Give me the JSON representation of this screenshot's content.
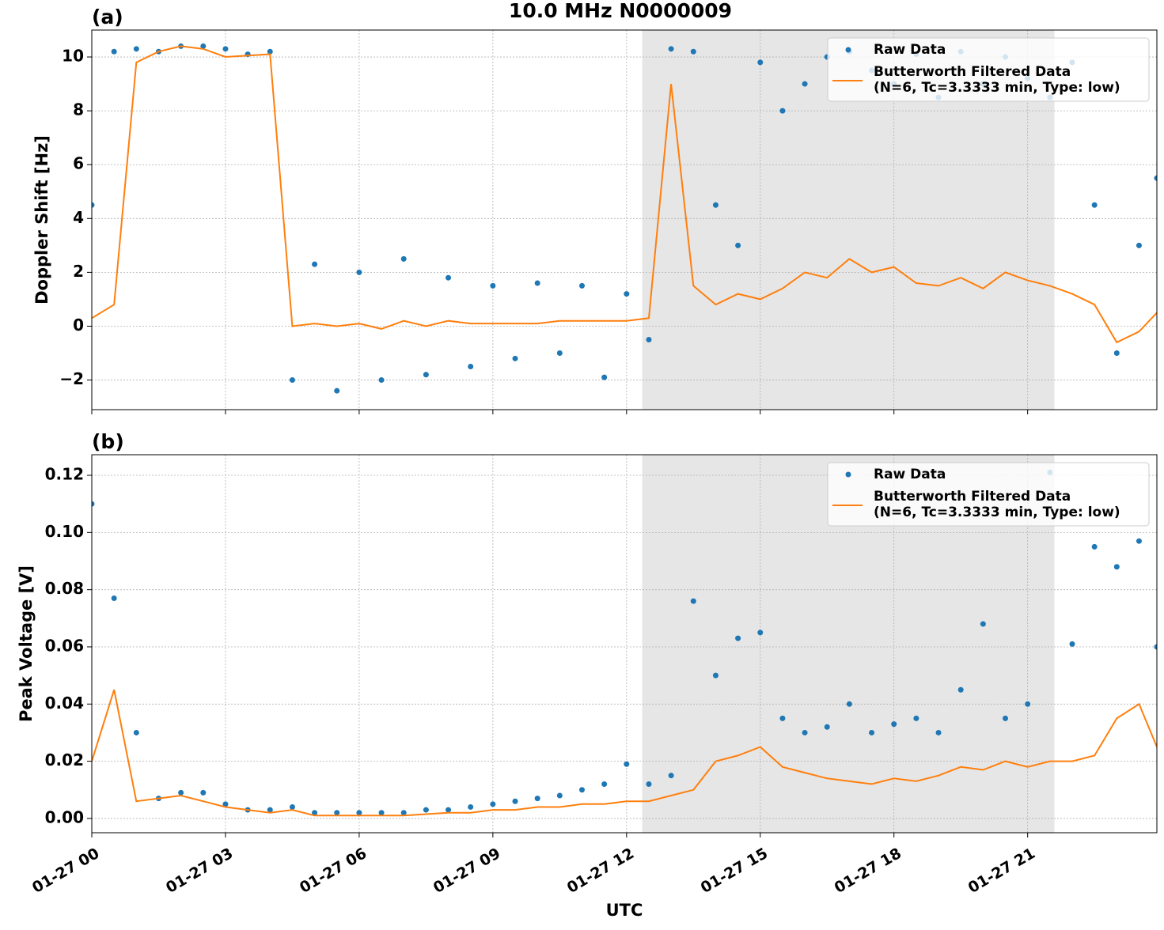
{
  "chart_data": [
    {
      "type": "scatter_line",
      "title": "10.0 MHz N0000009",
      "panel_label": "(a)",
      "y_label": "Doppler Shift [Hz]",
      "sharex": true,
      "xlim": [
        0,
        23.9
      ],
      "ylim": [
        -3.1,
        11.0
      ],
      "yticks": [
        {
          "value": -2,
          "label": "−2"
        },
        0,
        2,
        4,
        6,
        8,
        10
      ],
      "grid": true,
      "legend": "upper right",
      "shaded_span": [
        12.35,
        21.6
      ],
      "x": [
        0,
        0.5,
        1,
        1.5,
        2,
        2.5,
        3,
        3.5,
        4,
        4.5,
        5,
        5.5,
        6,
        6.5,
        7,
        7.5,
        8,
        8.5,
        9,
        9.5,
        10,
        10.5,
        11,
        11.5,
        12,
        12.5,
        13,
        13.5,
        14,
        14.5,
        15,
        15.5,
        16,
        16.5,
        17,
        17.5,
        18,
        18.5,
        19,
        19.5,
        20,
        20.5,
        21,
        21.5,
        22,
        22.5,
        23,
        23.5,
        23.9
      ],
      "series": [
        {
          "name": "Raw Data",
          "color": "#1f77b4",
          "mode": "markers",
          "values": [
            4.5,
            10.2,
            10.3,
            10.2,
            10.4,
            10.4,
            10.3,
            10.1,
            10.2,
            -2.0,
            2.3,
            -2.4,
            2.0,
            -2.0,
            2.5,
            -1.8,
            1.8,
            -1.5,
            1.5,
            -1.2,
            1.6,
            -1.0,
            1.5,
            -1.9,
            1.2,
            -0.5,
            10.3,
            10.2,
            4.5,
            3.0,
            9.8,
            8.0,
            9.0,
            10.0,
            10.2,
            9.5,
            9.0,
            10.1,
            8.5,
            10.2,
            9.0,
            10.0,
            9.2,
            8.5,
            9.8,
            4.5,
            -1.0,
            3.0,
            5.5
          ]
        },
        {
          "name": "Butterworth Filtered Data\n(N=6, Tc=3.3333 min, Type: low)",
          "color": "#ff7f0e",
          "mode": "line",
          "values": [
            0.3,
            0.8,
            9.8,
            10.2,
            10.4,
            10.3,
            10.0,
            10.05,
            10.1,
            0.0,
            0.1,
            0.0,
            0.1,
            -0.1,
            0.2,
            0.0,
            0.2,
            0.1,
            0.1,
            0.1,
            0.1,
            0.2,
            0.2,
            0.2,
            0.2,
            0.3,
            9.0,
            1.5,
            0.8,
            1.2,
            1.0,
            1.4,
            2.0,
            1.8,
            2.5,
            2.0,
            2.2,
            1.6,
            1.5,
            1.8,
            1.4,
            2.0,
            1.7,
            1.5,
            1.2,
            0.8,
            -0.6,
            -0.2,
            0.5
          ]
        }
      ]
    },
    {
      "type": "scatter_line",
      "panel_label": "(b)",
      "y_label": "Peak Voltage [V]",
      "x_label": "UTC",
      "xlim": [
        0,
        23.9
      ],
      "ylim": [
        -0.005,
        0.1272
      ],
      "xticks": [
        {
          "value": 0,
          "label": "01-27 00"
        },
        {
          "value": 3,
          "label": "01-27 03"
        },
        {
          "value": 6,
          "label": "01-27 06"
        },
        {
          "value": 9,
          "label": "01-27 09"
        },
        {
          "value": 12,
          "label": "01-27 12"
        },
        {
          "value": 15,
          "label": "01-27 15"
        },
        {
          "value": 18,
          "label": "01-27 18"
        },
        {
          "value": 21,
          "label": "01-27 21"
        }
      ],
      "yticks": [
        {
          "value": 0,
          "label": "0.00"
        },
        {
          "value": 0.02,
          "label": "0.02"
        },
        {
          "value": 0.04,
          "label": "0.04"
        },
        {
          "value": 0.06,
          "label": "0.06"
        },
        {
          "value": 0.08,
          "label": "0.08"
        },
        {
          "value": 0.1,
          "label": "0.10"
        },
        {
          "value": 0.12,
          "label": "0.12"
        }
      ],
      "grid": true,
      "legend": "upper right",
      "shaded_span": [
        12.35,
        21.6
      ],
      "x": [
        0,
        0.5,
        1,
        1.5,
        2,
        2.5,
        3,
        3.5,
        4,
        4.5,
        5,
        5.5,
        6,
        6.5,
        7,
        7.5,
        8,
        8.5,
        9,
        9.5,
        10,
        10.5,
        11,
        11.5,
        12,
        12.5,
        13,
        13.5,
        14,
        14.5,
        15,
        15.5,
        16,
        16.5,
        17,
        17.5,
        18,
        18.5,
        19,
        19.5,
        20,
        20.5,
        21,
        21.5,
        22,
        22.5,
        23,
        23.5,
        23.9
      ],
      "series": [
        {
          "name": "Raw Data",
          "color": "#1f77b4",
          "mode": "markers",
          "values": [
            0.11,
            0.077,
            0.03,
            0.007,
            0.009,
            0.009,
            0.005,
            0.003,
            0.003,
            0.004,
            0.002,
            0.002,
            0.002,
            0.002,
            0.002,
            0.003,
            0.003,
            0.004,
            0.005,
            0.006,
            0.007,
            0.008,
            0.01,
            0.012,
            0.019,
            0.012,
            0.015,
            0.076,
            0.05,
            0.063,
            0.065,
            0.035,
            0.03,
            0.032,
            0.04,
            0.03,
            0.033,
            0.035,
            0.03,
            0.045,
            0.068,
            0.035,
            0.04,
            0.121,
            0.061,
            0.095,
            0.088,
            0.097,
            0.06
          ]
        },
        {
          "name": "Butterworth Filtered Data\n(N=6, Tc=3.3333 min, Type: low)",
          "color": "#ff7f0e",
          "mode": "line",
          "values": [
            0.02,
            0.045,
            0.006,
            0.007,
            0.008,
            0.006,
            0.004,
            0.003,
            0.002,
            0.003,
            0.001,
            0.001,
            0.001,
            0.001,
            0.001,
            0.0015,
            0.002,
            0.002,
            0.003,
            0.003,
            0.004,
            0.004,
            0.005,
            0.005,
            0.006,
            0.006,
            0.008,
            0.01,
            0.02,
            0.022,
            0.025,
            0.018,
            0.016,
            0.014,
            0.013,
            0.012,
            0.014,
            0.013,
            0.015,
            0.018,
            0.017,
            0.02,
            0.018,
            0.02,
            0.02,
            0.022,
            0.035,
            0.04,
            0.025
          ]
        }
      ]
    }
  ]
}
